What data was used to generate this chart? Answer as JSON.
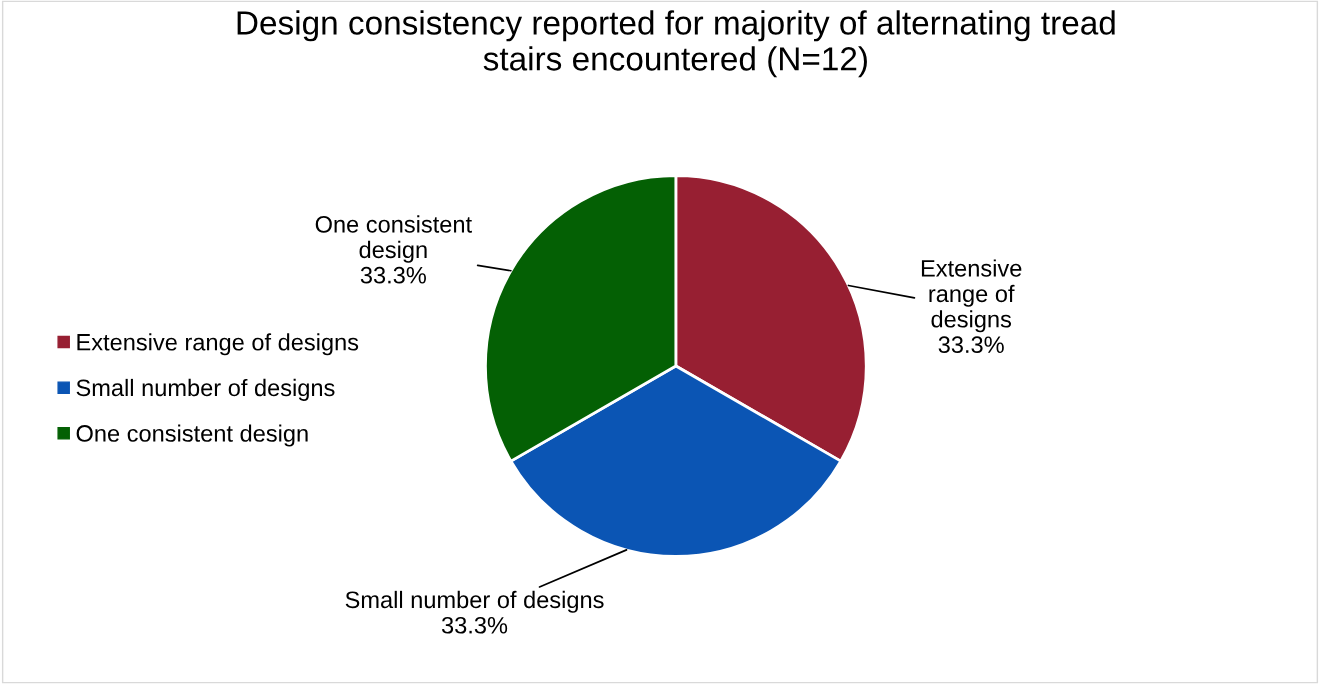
{
  "chart_data": {
    "type": "pie",
    "title": "Design consistency reported for majority of alternating tread stairs encountered (N=12)",
    "categories": [
      "Extensive range of designs",
      "Small number of designs",
      "One consistent design"
    ],
    "values": [
      33.3,
      33.3,
      33.3
    ],
    "colors": [
      "#971f32",
      "#0b55b4",
      "#046004"
    ],
    "value_labels": [
      "33.3%",
      "33.3%",
      "33.3%"
    ],
    "legend": "left"
  }
}
